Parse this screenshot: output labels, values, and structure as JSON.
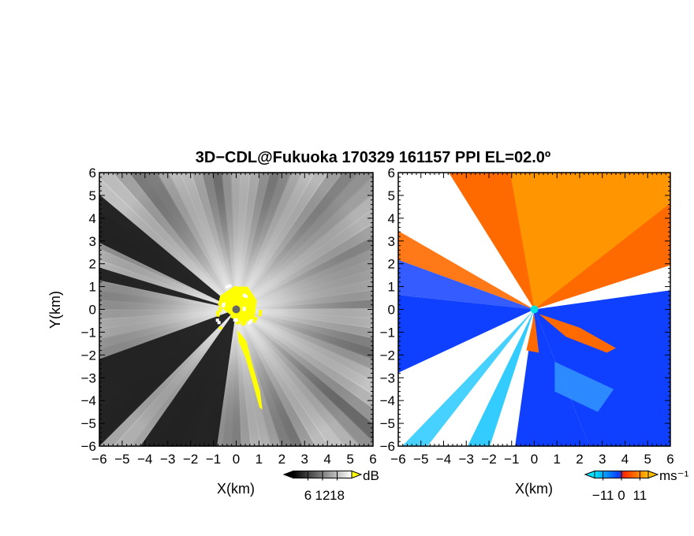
{
  "figure": {
    "title": "3D−CDL@Fukuoka 170329 161157 PPI EL=02.0º"
  },
  "chart_data": [
    {
      "type": "heatmap",
      "quantity": "reflectivity",
      "xlabel": "X(km)",
      "ylabel": "Y(km)",
      "xlim": [
        -6,
        6
      ],
      "ylim": [
        -6,
        6
      ],
      "xticks": [
        -6,
        -5,
        -4,
        -3,
        -2,
        -1,
        0,
        1,
        2,
        3,
        4,
        5,
        6
      ],
      "yticks": [
        -6,
        -5,
        -4,
        -3,
        -2,
        -1,
        0,
        1,
        2,
        3,
        4,
        5,
        6
      ],
      "xtick_labels": [
        "−6",
        "−5",
        "−4",
        "−3",
        "−2",
        "−1",
        "0",
        "1",
        "2",
        "3",
        "4",
        "5",
        "6"
      ],
      "ytick_labels": [
        "−6",
        "−5",
        "−4",
        "−3",
        "−2",
        "−1",
        "0",
        "1",
        "2",
        "3",
        "4",
        "5",
        "6"
      ],
      "colorbar": {
        "unit": "dB",
        "ticks": [
          6,
          12,
          18
        ],
        "tick_labels": [
          "6",
          "12",
          "18"
        ],
        "range": [
          0,
          24
        ],
        "colors": [
          "#000000",
          "#ffffff"
        ],
        "over_color": "#ffff00"
      },
      "radar_marker_color": "#666666",
      "blocked_sectors_deg": [
        [
          200,
          225
        ],
        [
          235,
          262
        ],
        [
          140,
          154
        ],
        [
          163,
          168
        ]
      ],
      "yellow_region": "near radar (0,0) and narrow band extending toward (1.1,-4.4)"
    },
    {
      "type": "heatmap",
      "quantity": "radial velocity",
      "xlabel": "X(km)",
      "ylabel": "",
      "xlim": [
        -6,
        6
      ],
      "ylim": [
        -6,
        6
      ],
      "xticks": [
        -6,
        -5,
        -4,
        -3,
        -2,
        -1,
        0,
        1,
        2,
        3,
        4,
        5,
        6
      ],
      "yticks": [
        -6,
        -5,
        -4,
        -3,
        -2,
        -1,
        0,
        1,
        2,
        3,
        4,
        5,
        6
      ],
      "xtick_labels": [
        "−6",
        "−5",
        "−4",
        "−3",
        "−2",
        "−1",
        "0",
        "1",
        "2",
        "3",
        "4",
        "5",
        "6"
      ],
      "ytick_labels": [
        "−6",
        "−5",
        "−4",
        "−3",
        "−2",
        "−1",
        "0",
        "1",
        "2",
        "3",
        "4",
        "5",
        "6"
      ],
      "colorbar": {
        "unit": "ms⁻¹",
        "ticks": [
          -11,
          0,
          11
        ],
        "tick_labels": [
          "−11",
          "0",
          "11"
        ],
        "range": [
          -16,
          16
        ],
        "colors": [
          "#00e5ff",
          "#0a3cff",
          "#ff2a00",
          "#ffc000"
        ]
      },
      "radar_marker_color": "#00e0e0",
      "receding_color": "#ff6a00",
      "approaching_color": "#1040ff",
      "no_data_color": "#ffffff"
    }
  ]
}
